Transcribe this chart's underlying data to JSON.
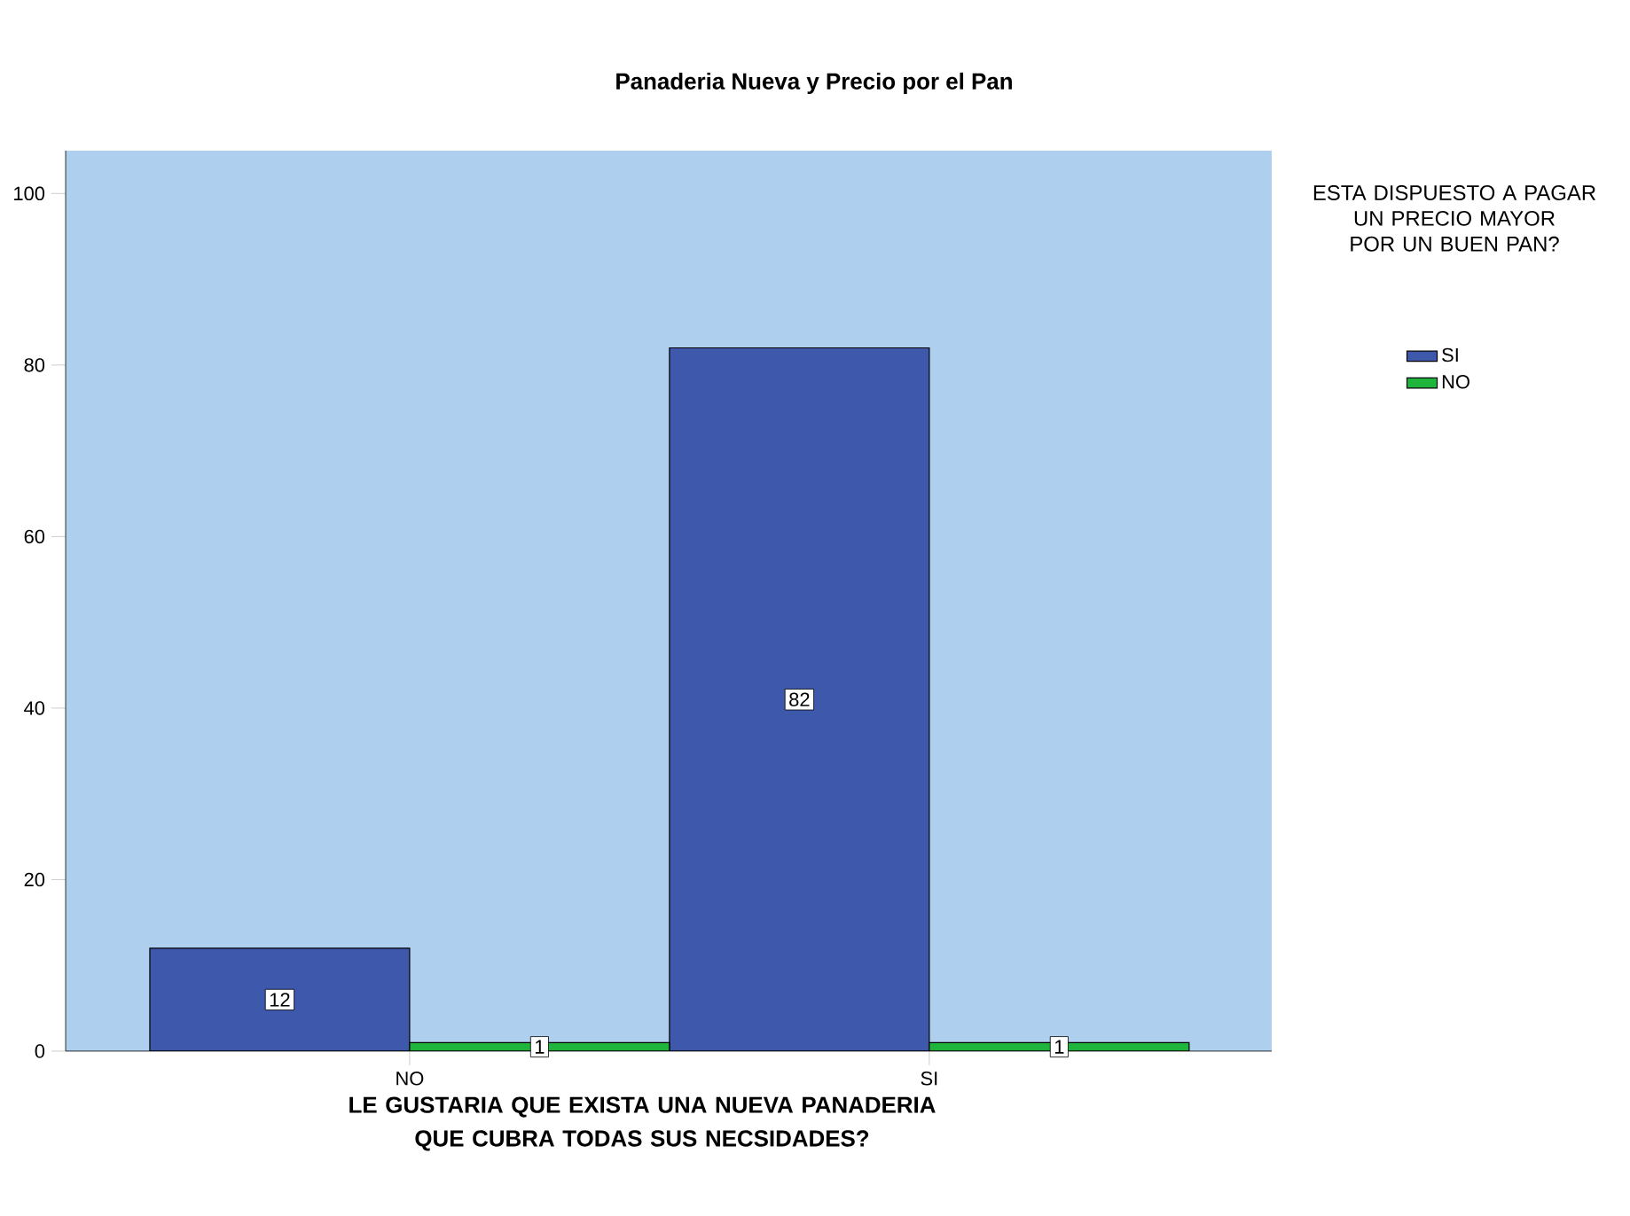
{
  "chart_data": {
    "type": "bar",
    "title": "Panaderia Nueva y Precio por el Pan",
    "xlabel": "LE GUSTARIA QUE EXISTA UNA NUEVA PANADERIA QUE CUBRA TODAS SUS NECSIDADES?",
    "categories": [
      "NO",
      "SI"
    ],
    "series": [
      {
        "name": "SI",
        "color": "#3e58ac",
        "values": [
          12,
          82
        ]
      },
      {
        "name": "NO",
        "color": "#1fb43c",
        "values": [
          1,
          1
        ]
      }
    ],
    "ylim": [
      0,
      105
    ],
    "yticks": [
      0,
      20,
      40,
      60,
      80,
      100
    ],
    "legend": "top right",
    "legend_title": "ESTA DISPUESTO A PAGAR UN PRECIO MAYOR POR UN BUEN PAN?",
    "data_labels": true
  }
}
